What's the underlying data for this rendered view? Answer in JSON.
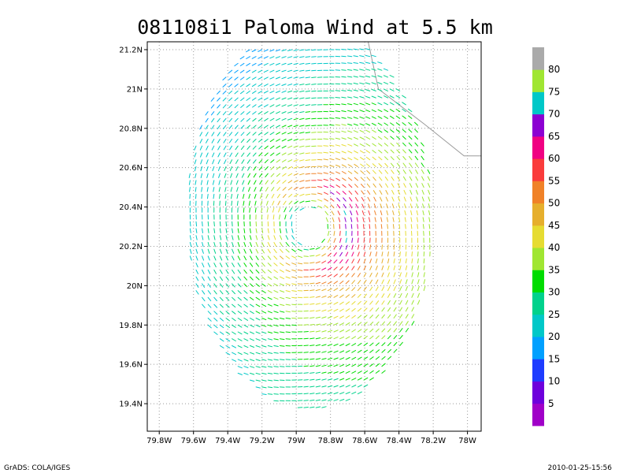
{
  "chart_data": {
    "type": "vector-field",
    "title": "081108i1 Paloma Wind at 5.5 km",
    "xlabel": "",
    "ylabel": "",
    "x_ticks": [
      "79.8W",
      "79.6W",
      "79.4W",
      "79.2W",
      "79W",
      "78.8W",
      "78.6W",
      "78.4W",
      "78.2W",
      "78W"
    ],
    "y_ticks": [
      "21.2N",
      "21N",
      "20.8N",
      "20.6N",
      "20.4N",
      "20.2N",
      "20N",
      "19.8N",
      "19.6N",
      "19.4N"
    ],
    "xlim": [
      -79.87,
      -77.92
    ],
    "ylim": [
      19.26,
      21.24
    ],
    "grid": true,
    "storm_center": {
      "lon": -78.92,
      "lat": 20.3
    },
    "wind_speed_max_kt": 58,
    "colorbar": {
      "labels": [
        "5",
        "10",
        "15",
        "20",
        "25",
        "30",
        "35",
        "40",
        "45",
        "50",
        "55",
        "60",
        "65",
        "70",
        "75",
        "80"
      ],
      "colors": [
        "#a000c8",
        "#6e00dc",
        "#1e3cff",
        "#00a0ff",
        "#00c8c8",
        "#00d28c",
        "#00dc00",
        "#a0e632",
        "#e6dc32",
        "#e6af2d",
        "#f08228",
        "#fa3c3c",
        "#f00082",
        "#8c00d2",
        "#00c8c8",
        "#a0e632",
        "#aaaaaa"
      ]
    }
  },
  "footer": {
    "left": "GrADS: COLA/IGES",
    "right": "2010-01-25-15:56"
  }
}
